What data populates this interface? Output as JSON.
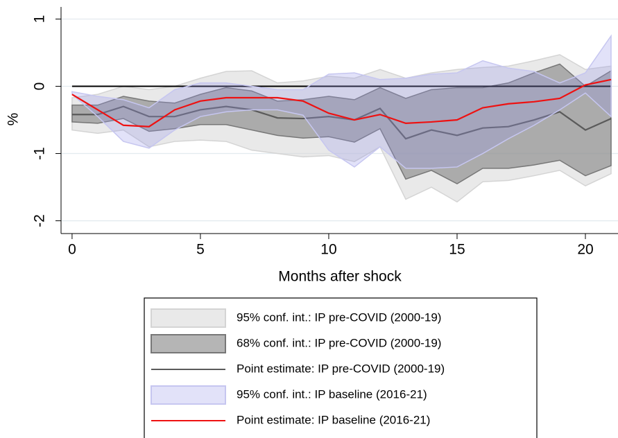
{
  "chart_data": {
    "type": "line",
    "x_label": "Months after shock",
    "y_label": "%",
    "x": [
      0,
      1,
      2,
      3,
      4,
      5,
      6,
      7,
      8,
      9,
      10,
      11,
      12,
      13,
      14,
      15,
      16,
      17,
      18,
      19,
      20,
      21
    ],
    "xlim": [
      -0.43,
      21.27
    ],
    "xticks": [
      0,
      5,
      10,
      15,
      20
    ],
    "ylim": [
      -2.19,
      1.18
    ],
    "yticks": [
      1,
      0,
      -1,
      -2
    ],
    "grid": true,
    "hline": 0,
    "series": [
      {
        "name": "95% conf. int.: IP pre-COVID (2000-19)",
        "kind": "band",
        "color": "rgba(215,215,215,0.55)",
        "edge": "#d4d4d4",
        "upper": [
          -0.17,
          -0.12,
          0.0,
          -0.05,
          0.0,
          0.12,
          0.22,
          0.23,
          0.05,
          0.08,
          0.15,
          0.12,
          0.25,
          0.12,
          0.2,
          0.25,
          0.28,
          0.3,
          0.38,
          0.47,
          0.25,
          0.3
        ],
        "lower": [
          -0.65,
          -0.7,
          -0.65,
          -0.9,
          -0.82,
          -0.8,
          -0.82,
          -0.95,
          -1.0,
          -1.05,
          -1.03,
          -1.12,
          -0.9,
          -1.68,
          -1.5,
          -1.72,
          -1.42,
          -1.4,
          -1.33,
          -1.25,
          -1.48,
          -1.3
        ]
      },
      {
        "name": "68% conf. int.: IP pre-COVID (2000-19)",
        "kind": "band",
        "color": "rgba(120,120,120,0.55)",
        "edge": "#777777",
        "upper": [
          -0.28,
          -0.28,
          -0.15,
          -0.22,
          -0.25,
          -0.12,
          -0.02,
          -0.07,
          -0.22,
          -0.2,
          -0.15,
          -0.2,
          -0.02,
          -0.18,
          -0.05,
          -0.02,
          -0.02,
          0.05,
          0.2,
          0.33,
          0.0,
          0.23
        ],
        "lower": [
          -0.53,
          -0.55,
          -0.48,
          -0.67,
          -0.63,
          -0.57,
          -0.57,
          -0.65,
          -0.73,
          -0.77,
          -0.75,
          -0.83,
          -0.63,
          -1.38,
          -1.25,
          -1.45,
          -1.22,
          -1.22,
          -1.17,
          -1.1,
          -1.33,
          -1.18
        ]
      },
      {
        "name": "Point estimate: IP pre-COVID (2000-19)",
        "kind": "line",
        "color": "#5a5a5a",
        "values": [
          -0.42,
          -0.42,
          -0.3,
          -0.45,
          -0.45,
          -0.35,
          -0.3,
          -0.35,
          -0.47,
          -0.48,
          -0.45,
          -0.5,
          -0.33,
          -0.78,
          -0.65,
          -0.73,
          -0.62,
          -0.6,
          -0.5,
          -0.38,
          -0.65,
          -0.48
        ]
      },
      {
        "name": "95% conf. int.: IP baseline (2016-21)",
        "kind": "band",
        "color": "rgba(150,150,235,0.28)",
        "edge": "#c6c6f0",
        "upper": [
          -0.08,
          -0.15,
          -0.2,
          -0.32,
          -0.05,
          0.05,
          0.05,
          0.0,
          -0.05,
          -0.05,
          0.18,
          0.2,
          0.1,
          0.12,
          0.18,
          0.2,
          0.38,
          0.27,
          0.22,
          0.05,
          0.2,
          0.75
        ],
        "lower": [
          -0.12,
          -0.45,
          -0.82,
          -0.92,
          -0.65,
          -0.45,
          -0.38,
          -0.35,
          -0.35,
          -0.43,
          -0.95,
          -1.2,
          -0.9,
          -1.22,
          -1.22,
          -1.2,
          -1.0,
          -0.78,
          -0.58,
          -0.35,
          -0.1,
          -0.45
        ]
      },
      {
        "name": "Point estimate: IP baseline (2016-21)",
        "kind": "line",
        "color": "#ee1111",
        "values": [
          -0.12,
          -0.35,
          -0.58,
          -0.6,
          -0.35,
          -0.22,
          -0.17,
          -0.17,
          -0.17,
          -0.22,
          -0.4,
          -0.5,
          -0.42,
          -0.55,
          -0.53,
          -0.5,
          -0.32,
          -0.26,
          -0.23,
          -0.18,
          0.02,
          0.1
        ]
      }
    ]
  }
}
